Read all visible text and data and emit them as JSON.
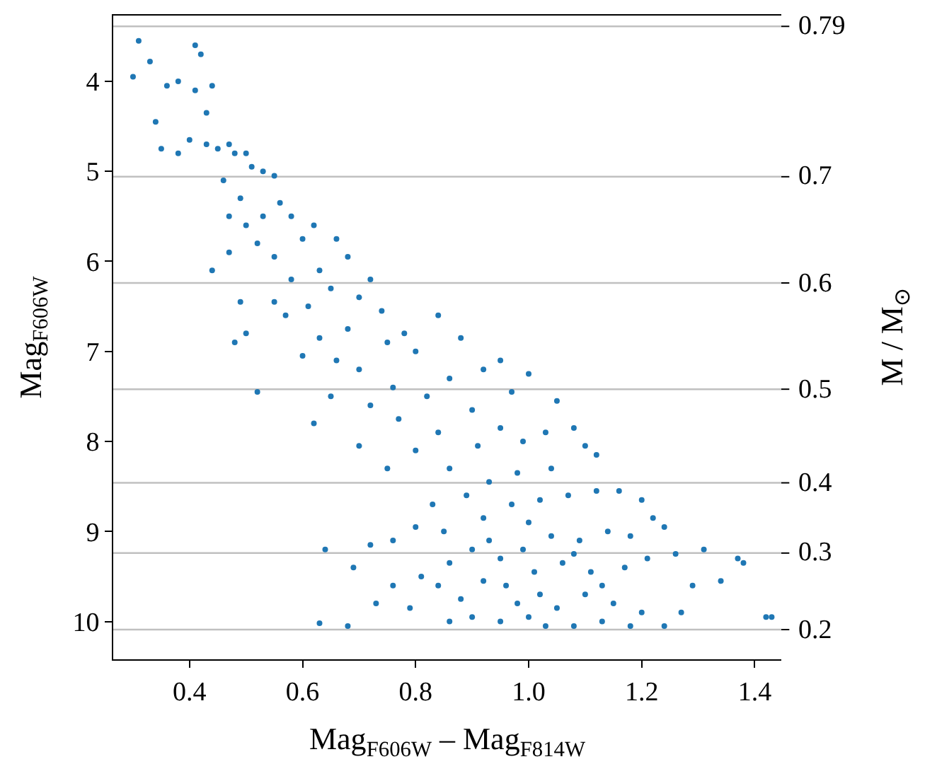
{
  "chart_data": {
    "type": "scatter",
    "xlabel": "Mag$_{F606W}$ – Mag$_{F814W}$",
    "ylabel": "Mag$_{F606W}$",
    "y2label": "M / M$_{⊙}$",
    "marker": "circle",
    "grid": false,
    "xlim": [
      0.265,
      1.447
    ],
    "xticks": [
      0.4,
      0.6,
      0.8,
      {
        "value": 1.0,
        "label": "1.0"
      },
      1.2,
      1.4
    ],
    "ylim": [
      10.42,
      3.27
    ],
    "yticks": [
      4,
      5,
      6,
      7,
      8,
      9,
      10
    ],
    "ref_lines": [
      {
        "axis": "y",
        "value": 3.39,
        "color": "#c0c0c0"
      },
      {
        "axis": "y",
        "value": 5.06,
        "color": "#c0c0c0"
      },
      {
        "axis": "y",
        "value": 6.24,
        "color": "#c0c0c0"
      },
      {
        "axis": "y",
        "value": 7.42,
        "color": "#c0c0c0"
      },
      {
        "axis": "y",
        "value": 8.46,
        "color": "#c0c0c0"
      },
      {
        "axis": "y",
        "value": 9.24,
        "color": "#c0c0c0"
      },
      {
        "axis": "y",
        "value": 10.09,
        "color": "#c0c0c0"
      }
    ],
    "annotations": [
      "0.79",
      "0.7",
      "0.6",
      "0.5",
      "0.4",
      "0.3",
      "0.2"
    ],
    "series": [
      {
        "color": "#1f77b4",
        "x": [
          0.31,
          0.33,
          0.3,
          0.34,
          0.36,
          0.38,
          0.41,
          0.42,
          0.41,
          0.43,
          0.44,
          0.43,
          0.45,
          0.35,
          0.38,
          0.4,
          0.47,
          0.48,
          0.5,
          0.51,
          0.46,
          0.49,
          0.53,
          0.55,
          0.47,
          0.5,
          0.53,
          0.56,
          0.58,
          0.44,
          0.47,
          0.52,
          0.55,
          0.6,
          0.62,
          0.66,
          0.68,
          0.63,
          0.58,
          0.55,
          0.49,
          0.5,
          0.48,
          0.52,
          0.57,
          0.61,
          0.65,
          0.7,
          0.72,
          0.74,
          0.68,
          0.63,
          0.6,
          0.66,
          0.7,
          0.75,
          0.78,
          0.8,
          0.84,
          0.76,
          0.72,
          0.65,
          0.62,
          0.7,
          0.77,
          0.82,
          0.86,
          0.88,
          0.92,
          0.95,
          0.97,
          1.0,
          1.05,
          0.9,
          0.84,
          0.8,
          0.75,
          0.86,
          0.91,
          0.95,
          0.99,
          1.03,
          1.08,
          1.1,
          1.12,
          0.93,
          0.98,
          1.04,
          0.89,
          0.83,
          0.8,
          0.76,
          0.72,
          0.64,
          0.69,
          0.76,
          0.73,
          0.68,
          0.85,
          0.92,
          0.97,
          1.02,
          1.07,
          1.12,
          1.16,
          1.2,
          1.22,
          1.24,
          1.18,
          1.14,
          1.09,
          1.04,
          0.99,
          0.95,
          0.9,
          0.86,
          0.84,
          0.88,
          0.92,
          0.96,
          1.01,
          1.06,
          1.11,
          1.17,
          1.21,
          1.26,
          1.31,
          1.34,
          1.37,
          1.38,
          1.42,
          1.43,
          1.29,
          1.27,
          1.24,
          1.2,
          1.15,
          1.1,
          1.05,
          1.0,
          0.95,
          0.9,
          0.86,
          1.03,
          1.08,
          1.13,
          1.18,
          0.98,
          1.02,
          0.93,
          1.0,
          1.08,
          1.13,
          0.81,
          0.79,
          0.63
        ],
        "values": [
          3.55,
          3.78,
          3.95,
          4.45,
          4.05,
          4.0,
          3.6,
          3.7,
          4.1,
          4.35,
          4.05,
          4.7,
          4.75,
          4.75,
          4.8,
          4.65,
          4.7,
          4.8,
          4.8,
          4.95,
          5.1,
          5.3,
          5.0,
          5.05,
          5.5,
          5.6,
          5.5,
          5.35,
          5.5,
          6.1,
          5.9,
          5.8,
          5.95,
          5.75,
          5.6,
          5.75,
          5.95,
          6.1,
          6.2,
          6.45,
          6.45,
          6.8,
          6.9,
          7.45,
          6.6,
          6.5,
          6.3,
          6.4,
          6.2,
          6.55,
          6.75,
          6.85,
          7.05,
          7.1,
          7.2,
          6.9,
          6.8,
          7.0,
          6.6,
          7.4,
          7.6,
          7.5,
          7.8,
          8.05,
          7.75,
          7.5,
          7.3,
          6.85,
          7.2,
          7.1,
          7.45,
          7.25,
          7.55,
          7.65,
          7.9,
          8.1,
          8.3,
          8.3,
          8.05,
          7.85,
          8.0,
          7.9,
          7.85,
          8.05,
          8.15,
          8.45,
          8.35,
          8.3,
          8.6,
          8.7,
          8.95,
          9.1,
          9.15,
          9.2,
          9.4,
          9.6,
          9.8,
          10.05,
          9.0,
          8.85,
          8.7,
          8.65,
          8.6,
          8.55,
          8.55,
          8.65,
          8.85,
          8.95,
          9.05,
          9.0,
          9.1,
          9.05,
          9.2,
          9.3,
          9.2,
          9.35,
          9.6,
          9.75,
          9.55,
          9.6,
          9.45,
          9.35,
          9.45,
          9.4,
          9.3,
          9.25,
          9.2,
          9.55,
          9.3,
          9.35,
          9.95,
          9.95,
          9.6,
          9.9,
          10.05,
          9.9,
          9.8,
          9.7,
          9.85,
          9.95,
          10.0,
          9.95,
          10.0,
          10.05,
          10.05,
          10.0,
          10.05,
          9.8,
          9.7,
          9.1,
          8.9,
          9.25,
          9.6,
          9.5,
          9.85,
          10.02
        ]
      }
    ]
  }
}
